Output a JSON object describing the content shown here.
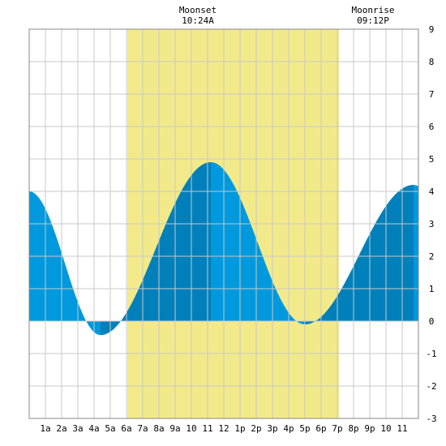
{
  "colors": {
    "background": "#ffffff",
    "daylight": "#f2ea8a",
    "grid": "#c8c8c8",
    "tide_light": "#0099dd",
    "tide_dark": "#0080bb",
    "border": "#888888"
  },
  "moon_events": [
    {
      "label": "Moonset",
      "time": "10:24A",
      "hour": 10.4
    },
    {
      "label": "Moonrise",
      "time": "09:12P",
      "hour": 21.2
    }
  ],
  "chart_data": {
    "type": "area",
    "title": "",
    "xlabel": "",
    "ylabel": "",
    "xlim": [
      0,
      24
    ],
    "ylim": [
      -3,
      9
    ],
    "grid": true,
    "x_tick_labels": [
      {
        "hour": 1,
        "label": "1a"
      },
      {
        "hour": 2,
        "label": "2a"
      },
      {
        "hour": 3,
        "label": "3a"
      },
      {
        "hour": 4,
        "label": "4a"
      },
      {
        "hour": 5,
        "label": "5a"
      },
      {
        "hour": 6,
        "label": "6a"
      },
      {
        "hour": 7,
        "label": "7a"
      },
      {
        "hour": 8,
        "label": "8a"
      },
      {
        "hour": 9,
        "label": "9a"
      },
      {
        "hour": 10,
        "label": "10"
      },
      {
        "hour": 11,
        "label": "11"
      },
      {
        "hour": 12,
        "label": "12"
      },
      {
        "hour": 13,
        "label": "1p"
      },
      {
        "hour": 14,
        "label": "2p"
      },
      {
        "hour": 15,
        "label": "3p"
      },
      {
        "hour": 16,
        "label": "4p"
      },
      {
        "hour": 17,
        "label": "5p"
      },
      {
        "hour": 18,
        "label": "6p"
      },
      {
        "hour": 19,
        "label": "7p"
      },
      {
        "hour": 20,
        "label": "8p"
      },
      {
        "hour": 21,
        "label": "9p"
      },
      {
        "hour": 22,
        "label": "10"
      },
      {
        "hour": 23,
        "label": "11"
      }
    ],
    "y_tick_labels": [
      "-3",
      "-2",
      "-1",
      "0",
      "1",
      "2",
      "3",
      "4",
      "5",
      "6",
      "7",
      "8",
      "9"
    ],
    "daylight": {
      "start_hour": 6.05,
      "end_hour": 19.1
    },
    "tide_extremes": [
      {
        "hour": 0.0,
        "height": 4.0
      },
      {
        "hour": 4.4,
        "height": -0.43
      },
      {
        "hour": 11.2,
        "height": 4.9
      },
      {
        "hour": 17.0,
        "height": -0.1
      },
      {
        "hour": 23.7,
        "height": 4.2
      },
      {
        "hour": 24.0,
        "height": 4.17
      }
    ]
  }
}
